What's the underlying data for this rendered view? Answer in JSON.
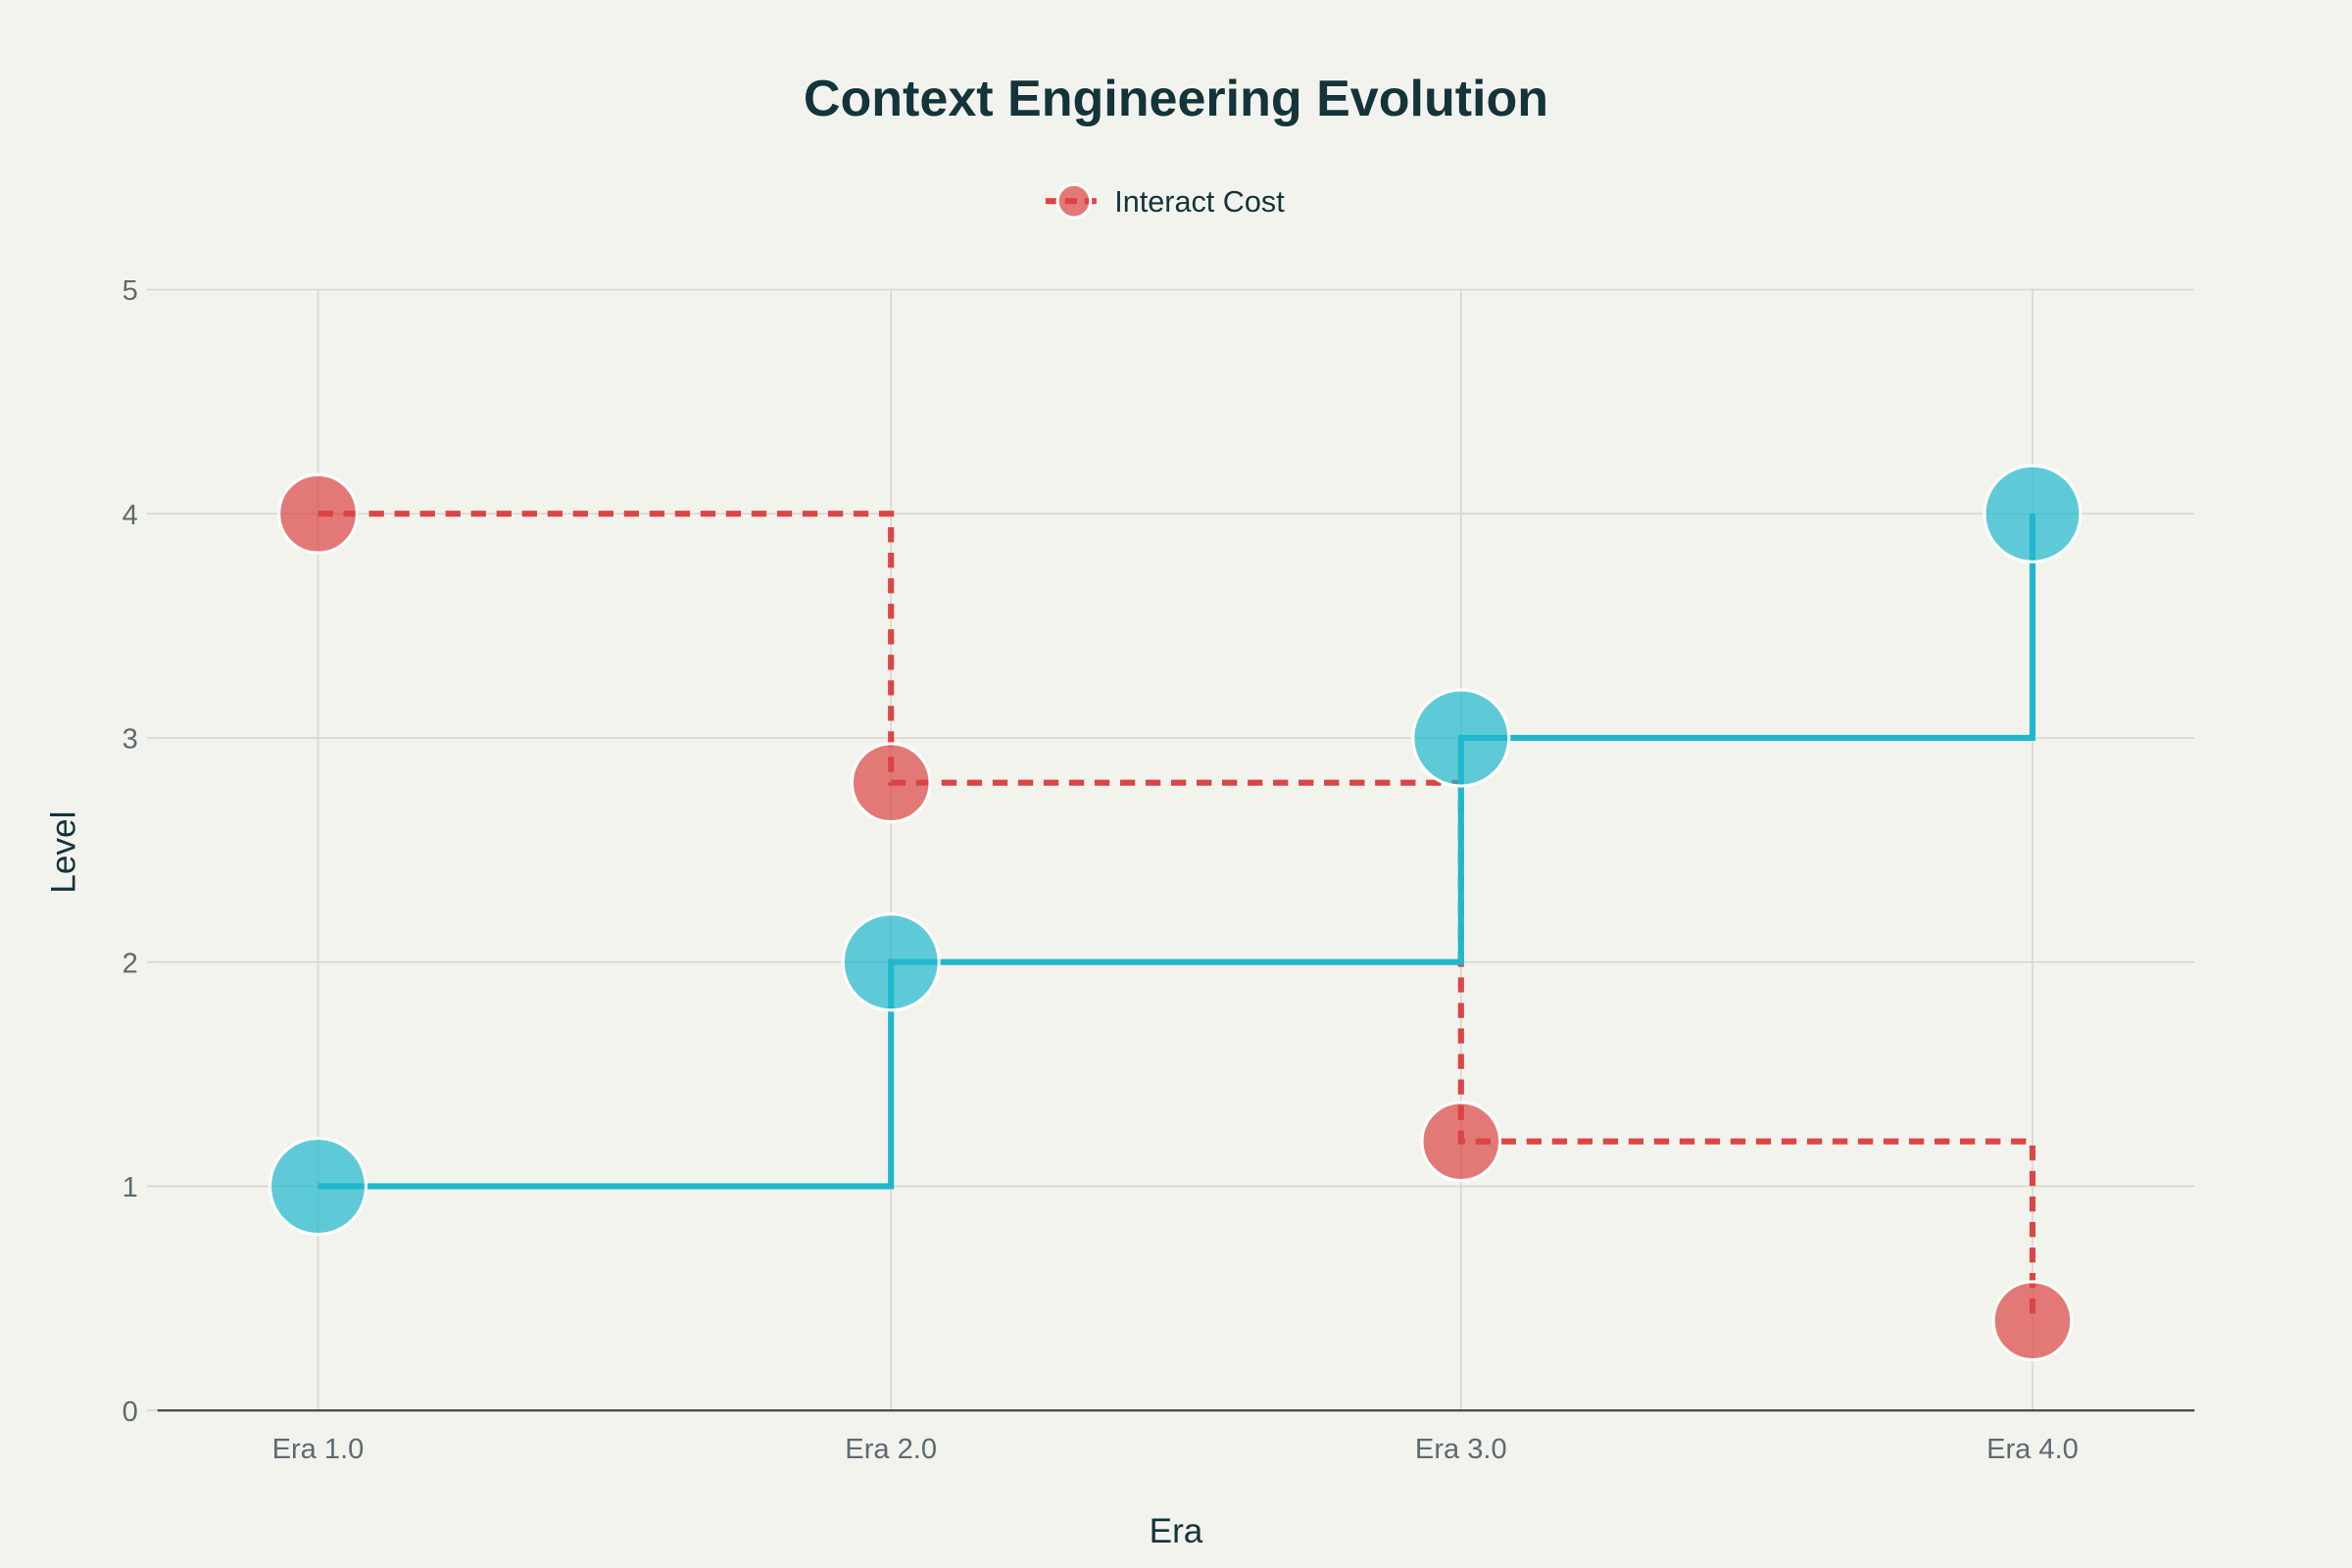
{
  "chart_data": {
    "type": "line",
    "title": "Context Engineering Evolution",
    "xlabel": "Era",
    "ylabel": "Level",
    "categories": [
      "Era 1.0",
      "Era 2.0",
      "Era 3.0",
      "Era 4.0"
    ],
    "ylim": [
      0,
      5
    ],
    "yticks": [
      "0",
      "1",
      "2",
      "3",
      "4",
      "5"
    ],
    "grid": true,
    "line_shape": "step (horizontal then vertical)",
    "legend_placement": "top-center",
    "series": [
      {
        "values": [
          1,
          2,
          3,
          4
        ],
        "color": "#1FB8CD",
        "dash": "solid",
        "in_legend": false
      },
      {
        "name": "Interact Cost",
        "values": [
          4,
          2.8,
          1.2,
          0.4
        ],
        "color": "#DB4545",
        "dash": "dashed",
        "in_legend": true
      }
    ]
  }
}
